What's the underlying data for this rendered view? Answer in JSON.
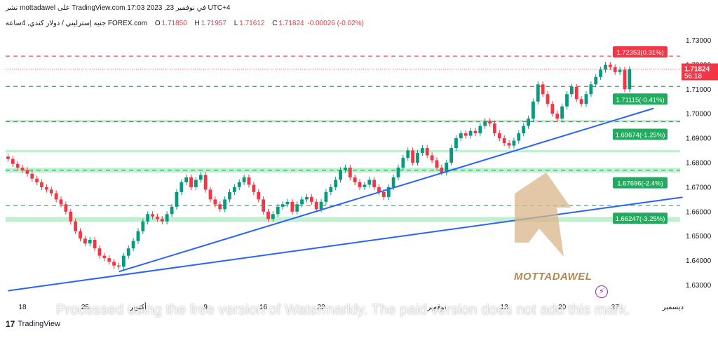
{
  "header": {
    "publisher_line": "نشر mottadawel على TradingView.com في نوفمبر 23, 2023 17:03 UTC+4",
    "symbol_line": "جنيه إسترليني / دولار كندي, 4ساعة  FOREX.com",
    "ohlc": {
      "open_key": "O",
      "open": "1.71850",
      "high_key": "H",
      "high": "1.71957",
      "low_key": "L",
      "low": "1.71612",
      "close_key": "C",
      "close": "1.71824",
      "change": "-0.00026 (-0.02%)"
    }
  },
  "price_tags": {
    "current_price": "1.71824",
    "countdown": "56:18",
    "current_color": "#f23645"
  },
  "footer": {
    "brand": "TradingView",
    "icon": "tradingview-logo-icon"
  },
  "watermark": {
    "processed_text": "Processed using the free version of Watermarkly. The paid version does not add this mark.",
    "logo_text": "MOTTADAWEL"
  },
  "colors": {
    "up": "#089981",
    "down": "#f23645",
    "trendline": "#2962ff",
    "zone_fill": "#b7ecc7",
    "level_green": "#22ab5e",
    "level_red": "#f23645"
  },
  "chart_data": {
    "type": "candlestick",
    "title": "",
    "ylim": [
      1.625,
      1.735
    ],
    "y_ticks": [
      "1.73000",
      "1.72000",
      "1.71000",
      "1.70000",
      "1.69000",
      "1.68000",
      "1.67000",
      "1.66000",
      "1.65000",
      "1.64000",
      "1.63000"
    ],
    "y_tick_values": [
      1.73,
      1.72,
      1.71,
      1.7,
      1.69,
      1.68,
      1.67,
      1.66,
      1.65,
      1.64,
      1.63
    ],
    "x_ticks": [
      "18",
      "25",
      "أكتوبر",
      "9",
      "16",
      "23",
      "نوفمبر",
      "13",
      "20",
      "27",
      "ديسمبر"
    ],
    "x_tick_index": [
      3,
      16,
      27,
      41,
      53,
      65,
      89,
      103,
      115,
      126,
      138
    ],
    "bars_total": 140,
    "levels": [
      {
        "label": "1.72353(0.31%)",
        "value": 1.72353,
        "color": "#f23645",
        "style": "dashed"
      },
      {
        "label": "1.71115(-0.41%)",
        "value": 1.71115,
        "color": "#22ab5e",
        "style": "dashed"
      },
      {
        "label": "1.69674(-1.25%)",
        "value": 1.69674,
        "color": "#22ab5e",
        "style": "dashed"
      },
      {
        "label": "1.67696(-2.4%)",
        "value": 1.67696,
        "color": "#22ab5e",
        "style": "dashed"
      },
      {
        "label": "1.66247(-3.25%)",
        "value": 1.66247,
        "color": "#22ab5e",
        "style": "dashed"
      }
    ],
    "zones": [
      {
        "from": 1.6965,
        "to": 1.6975
      },
      {
        "from": 1.6842,
        "to": 1.6852
      },
      {
        "from": 1.6759,
        "to": 1.6779
      },
      {
        "from": 1.6558,
        "to": 1.6578
      }
    ],
    "current_price_line": 1.71824,
    "trendlines": [
      {
        "x1": 23,
        "y1": 1.6355,
        "x2": 134,
        "y2": 1.7022
      },
      {
        "x1": 0,
        "y1": 1.6277,
        "x2": 140,
        "y2": 1.6659
      }
    ],
    "close_series": [
      1.6815,
      1.6795,
      1.678,
      1.677,
      1.6755,
      1.6735,
      1.672,
      1.67,
      1.669,
      1.6675,
      1.665,
      1.663,
      1.66,
      1.656,
      1.652,
      1.649,
      1.647,
      1.6485,
      1.645,
      1.642,
      1.641,
      1.6395,
      1.638,
      1.6375,
      1.642,
      1.645,
      1.648,
      1.652,
      1.656,
      1.659,
      1.658,
      1.657,
      1.656,
      1.659,
      1.662,
      1.668,
      1.672,
      1.674,
      1.67,
      1.673,
      1.675,
      1.669,
      1.665,
      1.663,
      1.661,
      1.665,
      1.668,
      1.67,
      1.672,
      1.674,
      1.671,
      1.668,
      1.665,
      1.66,
      1.657,
      1.659,
      1.662,
      1.663,
      1.664,
      1.66,
      1.663,
      1.665,
      1.666,
      1.664,
      1.661,
      1.664,
      1.668,
      1.67,
      1.673,
      1.677,
      1.678,
      1.674,
      1.672,
      1.67,
      1.671,
      1.673,
      1.67,
      1.668,
      1.666,
      1.67,
      1.674,
      1.678,
      1.682,
      1.685,
      1.68,
      1.684,
      1.686,
      1.683,
      1.681,
      1.678,
      1.676,
      1.68,
      1.686,
      1.69,
      1.692,
      1.691,
      1.693,
      1.692,
      1.695,
      1.697,
      1.696,
      1.692,
      1.69,
      1.688,
      1.687,
      1.689,
      1.692,
      1.695,
      1.698,
      1.705,
      1.712,
      1.708,
      1.704,
      1.7,
      1.698,
      1.703,
      1.708,
      1.711,
      1.706,
      1.704,
      1.708,
      1.712,
      1.715,
      1.718,
      1.72,
      1.719,
      1.717,
      1.718,
      1.71,
      1.7182
    ]
  }
}
